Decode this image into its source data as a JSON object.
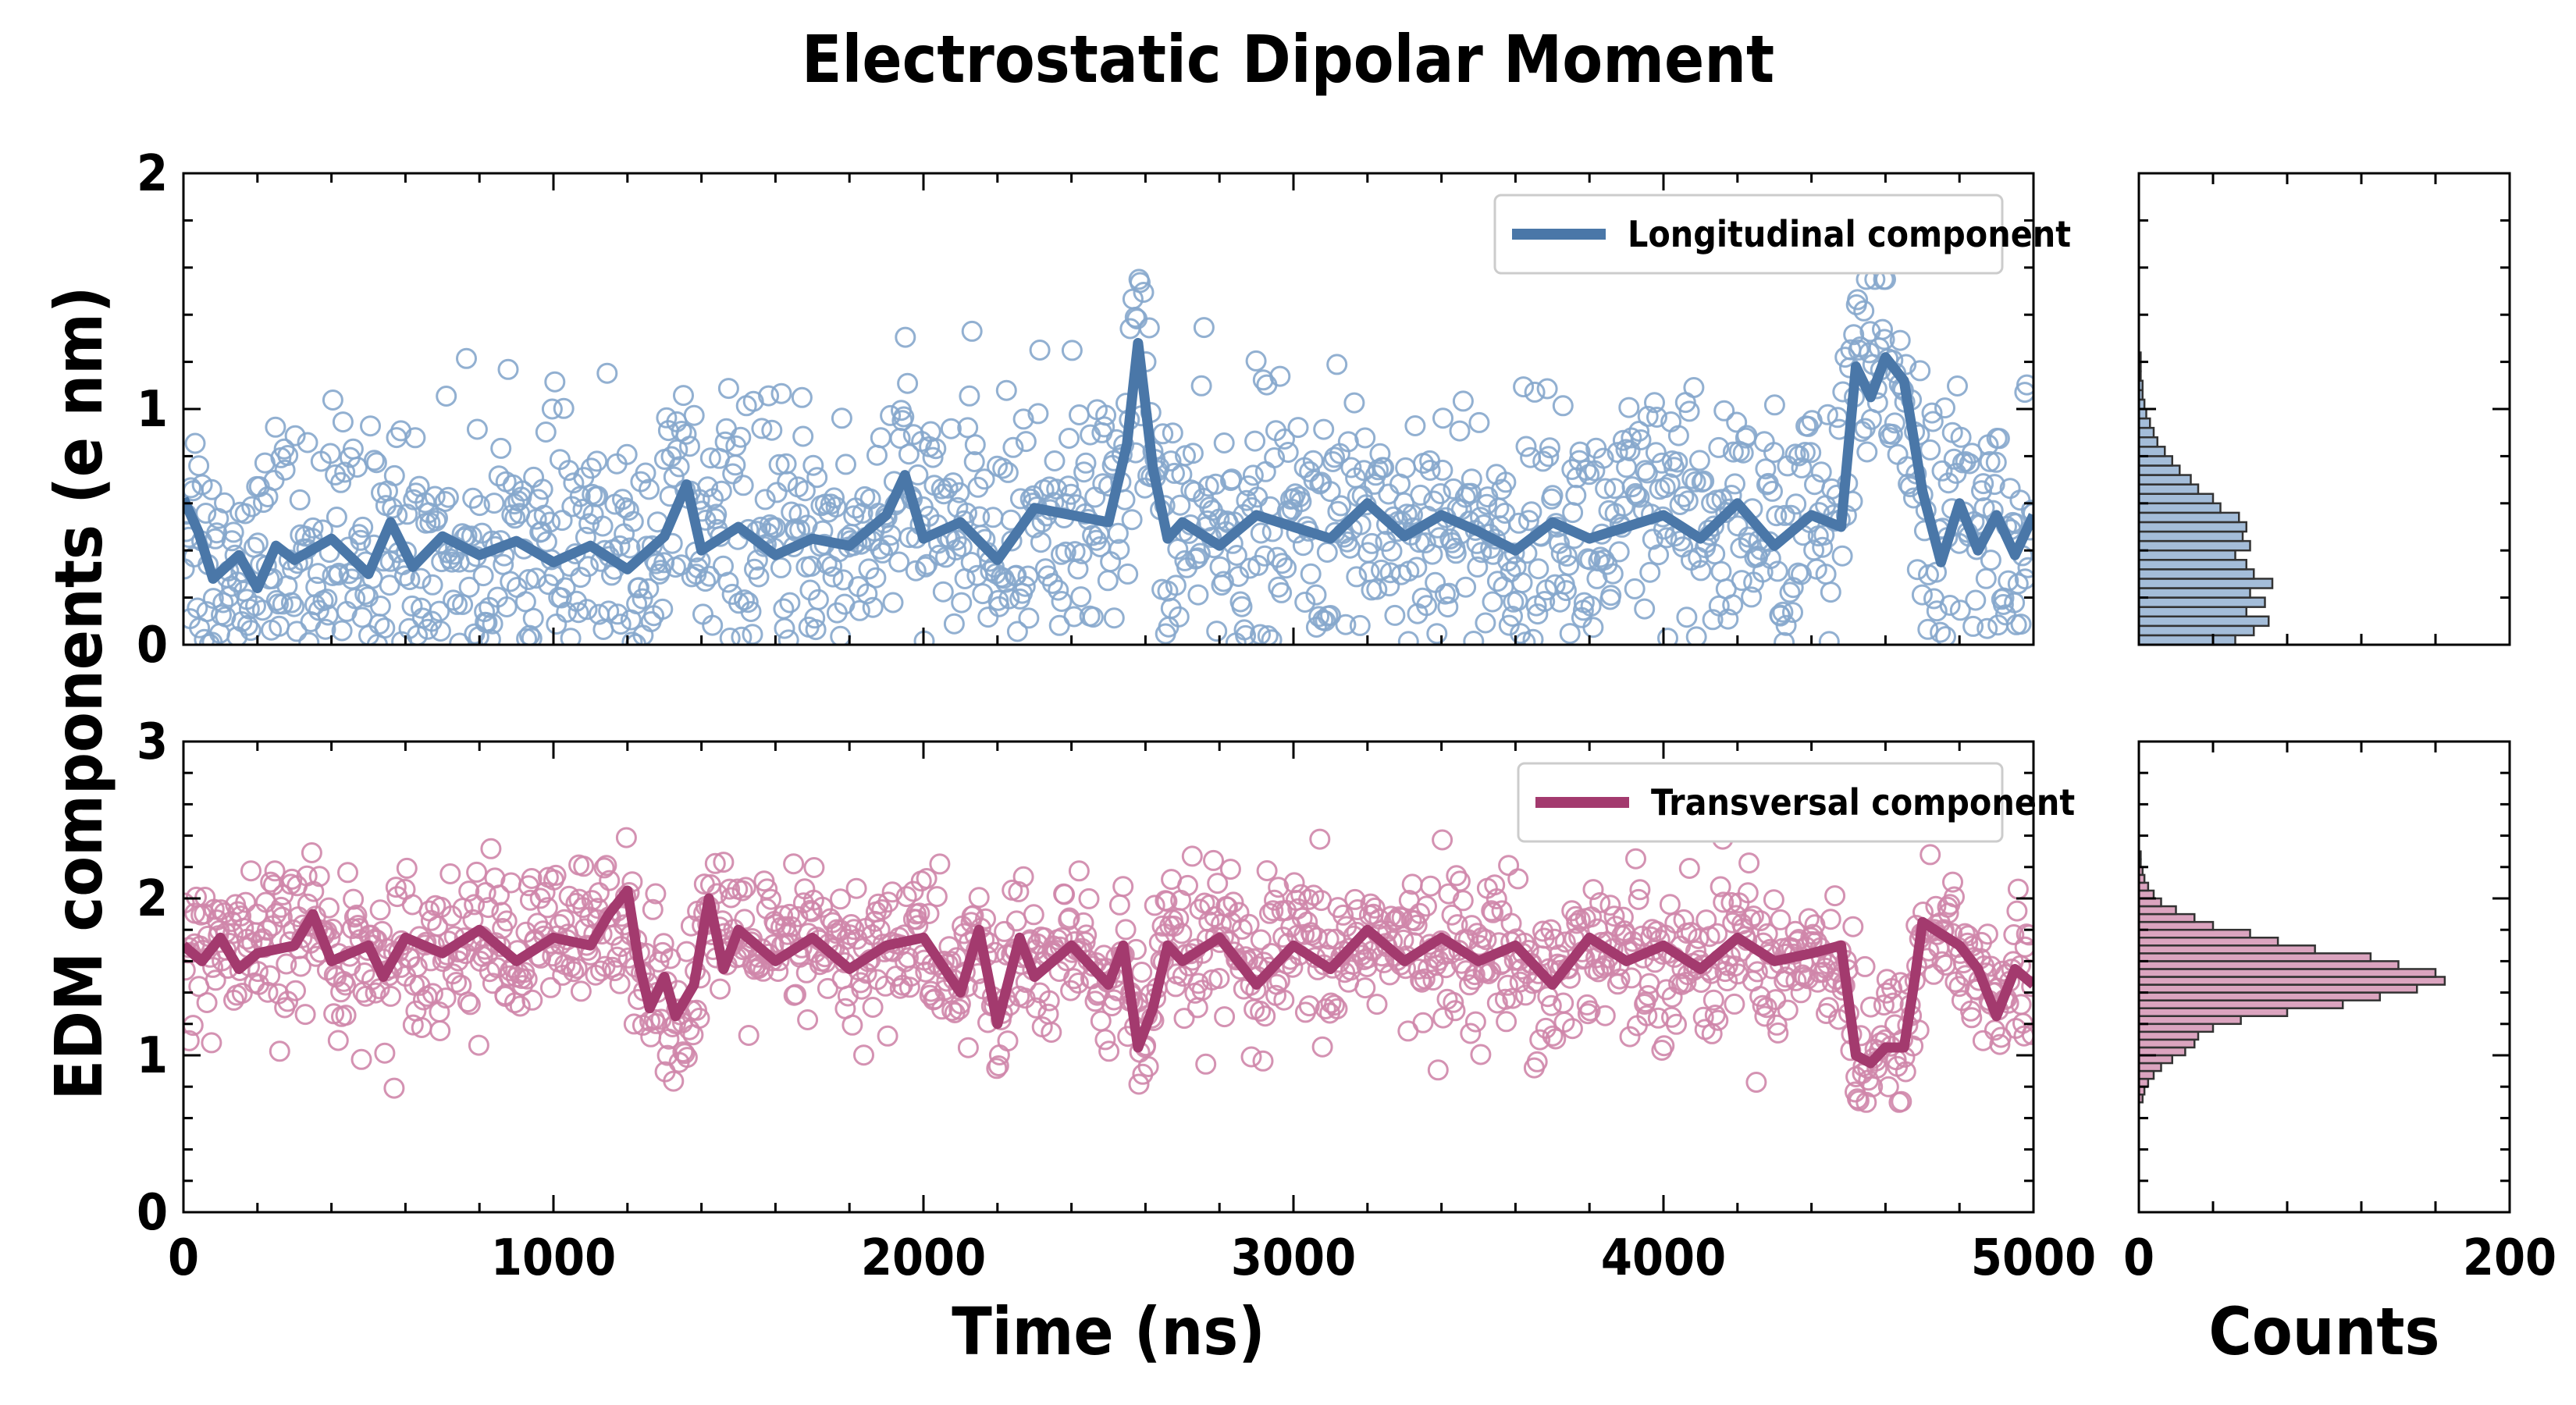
{
  "chart_data": [
    {
      "type": "scatter",
      "id": "top",
      "title": "Electrostatic Dipolar Moment",
      "xlabel": "Time (ns)",
      "ylabel": "EDM components (e nm)",
      "xlim": [
        0,
        5000
      ],
      "ylim": [
        0,
        2
      ],
      "xticks": [
        0,
        1000,
        2000,
        3000,
        4000,
        5000
      ],
      "yticks": [
        0,
        1,
        2
      ],
      "legend": "top-right",
      "series": [
        {
          "name": "Longitudinal component",
          "color": "#4a77a8",
          "scatter_color": "#86a7cc",
          "smoothed_line": [
            [
              0,
              0.62
            ],
            [
              40,
              0.48
            ],
            [
              80,
              0.28
            ],
            [
              150,
              0.38
            ],
            [
              200,
              0.24
            ],
            [
              250,
              0.42
            ],
            [
              300,
              0.36
            ],
            [
              400,
              0.45
            ],
            [
              500,
              0.3
            ],
            [
              560,
              0.52
            ],
            [
              620,
              0.33
            ],
            [
              700,
              0.46
            ],
            [
              800,
              0.38
            ],
            [
              900,
              0.44
            ],
            [
              1000,
              0.35
            ],
            [
              1100,
              0.42
            ],
            [
              1200,
              0.32
            ],
            [
              1300,
              0.46
            ],
            [
              1360,
              0.68
            ],
            [
              1400,
              0.4
            ],
            [
              1500,
              0.5
            ],
            [
              1600,
              0.38
            ],
            [
              1700,
              0.45
            ],
            [
              1800,
              0.42
            ],
            [
              1900,
              0.55
            ],
            [
              1950,
              0.72
            ],
            [
              2000,
              0.45
            ],
            [
              2100,
              0.52
            ],
            [
              2200,
              0.36
            ],
            [
              2300,
              0.58
            ],
            [
              2400,
              0.55
            ],
            [
              2500,
              0.52
            ],
            [
              2550,
              0.85
            ],
            [
              2580,
              1.28
            ],
            [
              2620,
              0.75
            ],
            [
              2660,
              0.45
            ],
            [
              2700,
              0.52
            ],
            [
              2800,
              0.42
            ],
            [
              2900,
              0.55
            ],
            [
              3000,
              0.5
            ],
            [
              3100,
              0.45
            ],
            [
              3200,
              0.6
            ],
            [
              3300,
              0.46
            ],
            [
              3400,
              0.55
            ],
            [
              3500,
              0.48
            ],
            [
              3600,
              0.4
            ],
            [
              3700,
              0.52
            ],
            [
              3800,
              0.45
            ],
            [
              3900,
              0.5
            ],
            [
              4000,
              0.55
            ],
            [
              4100,
              0.45
            ],
            [
              4200,
              0.6
            ],
            [
              4300,
              0.42
            ],
            [
              4400,
              0.55
            ],
            [
              4480,
              0.5
            ],
            [
              4520,
              1.18
            ],
            [
              4560,
              1.05
            ],
            [
              4600,
              1.22
            ],
            [
              4650,
              1.12
            ],
            [
              4700,
              0.65
            ],
            [
              4750,
              0.35
            ],
            [
              4800,
              0.6
            ],
            [
              4850,
              0.4
            ],
            [
              4900,
              0.55
            ],
            [
              4950,
              0.38
            ],
            [
              5000,
              0.55
            ]
          ],
          "scatter_summary": {
            "n_points": 1500,
            "x_range": [
              0,
              5000
            ],
            "y_range": [
              0.0,
              1.55
            ],
            "typical_center": 0.45
          },
          "histogram": {
            "orientation": "horizontal",
            "xlim": [
              0,
              200
            ],
            "xticks": [
              0,
              200
            ],
            "xlabel": "Counts",
            "bin_width": 0.04,
            "bin_edges_start": 0.0,
            "counts": [
              52,
              62,
              70,
              58,
              68,
              60,
              72,
              62,
              58,
              52,
              60,
              56,
              58,
              54,
              44,
              40,
              32,
              28,
              22,
              18,
              14,
              10,
              8,
              6,
              4,
              3,
              2,
              2,
              1,
              1,
              1,
              0,
              0
            ]
          }
        }
      ]
    },
    {
      "type": "scatter",
      "id": "bottom",
      "xlabel": "Time (ns)",
      "xlim": [
        0,
        5000
      ],
      "ylim": [
        0,
        3
      ],
      "xticks": [
        0,
        1000,
        2000,
        3000,
        4000,
        5000
      ],
      "yticks": [
        0,
        1,
        2,
        3
      ],
      "legend": "top-right",
      "series": [
        {
          "name": "Transversal component",
          "color": "#a33a6e",
          "scatter_color": "#cf86aa",
          "smoothed_line": [
            [
              0,
              1.7
            ],
            [
              50,
              1.6
            ],
            [
              100,
              1.75
            ],
            [
              150,
              1.55
            ],
            [
              200,
              1.65
            ],
            [
              300,
              1.7
            ],
            [
              350,
              1.9
            ],
            [
              400,
              1.6
            ],
            [
              500,
              1.7
            ],
            [
              540,
              1.5
            ],
            [
              600,
              1.75
            ],
            [
              700,
              1.65
            ],
            [
              800,
              1.8
            ],
            [
              900,
              1.6
            ],
            [
              1000,
              1.75
            ],
            [
              1100,
              1.7
            ],
            [
              1150,
              1.9
            ],
            [
              1200,
              2.05
            ],
            [
              1230,
              1.6
            ],
            [
              1260,
              1.3
            ],
            [
              1300,
              1.5
            ],
            [
              1330,
              1.25
            ],
            [
              1380,
              1.45
            ],
            [
              1420,
              2.0
            ],
            [
              1460,
              1.55
            ],
            [
              1500,
              1.8
            ],
            [
              1600,
              1.6
            ],
            [
              1700,
              1.75
            ],
            [
              1800,
              1.55
            ],
            [
              1900,
              1.7
            ],
            [
              2000,
              1.75
            ],
            [
              2100,
              1.4
            ],
            [
              2150,
              1.8
            ],
            [
              2200,
              1.2
            ],
            [
              2260,
              1.75
            ],
            [
              2300,
              1.5
            ],
            [
              2400,
              1.7
            ],
            [
              2500,
              1.45
            ],
            [
              2540,
              1.7
            ],
            [
              2580,
              1.05
            ],
            [
              2620,
              1.3
            ],
            [
              2660,
              1.7
            ],
            [
              2700,
              1.6
            ],
            [
              2800,
              1.75
            ],
            [
              2900,
              1.45
            ],
            [
              3000,
              1.7
            ],
            [
              3100,
              1.55
            ],
            [
              3200,
              1.8
            ],
            [
              3300,
              1.6
            ],
            [
              3400,
              1.75
            ],
            [
              3500,
              1.6
            ],
            [
              3600,
              1.7
            ],
            [
              3700,
              1.45
            ],
            [
              3800,
              1.75
            ],
            [
              3900,
              1.6
            ],
            [
              4000,
              1.7
            ],
            [
              4100,
              1.55
            ],
            [
              4200,
              1.75
            ],
            [
              4300,
              1.6
            ],
            [
              4400,
              1.65
            ],
            [
              4480,
              1.7
            ],
            [
              4520,
              1.0
            ],
            [
              4560,
              0.95
            ],
            [
              4600,
              1.05
            ],
            [
              4650,
              1.05
            ],
            [
              4680,
              1.5
            ],
            [
              4700,
              1.85
            ],
            [
              4800,
              1.7
            ],
            [
              4850,
              1.55
            ],
            [
              4900,
              1.25
            ],
            [
              4950,
              1.55
            ],
            [
              5000,
              1.45
            ]
          ],
          "scatter_summary": {
            "n_points": 1500,
            "x_range": [
              0,
              5000
            ],
            "y_range": [
              0.7,
              2.55
            ],
            "typical_center": 1.65
          },
          "histogram": {
            "orientation": "horizontal",
            "xlim": [
              0,
              200
            ],
            "xticks": [
              0,
              200
            ],
            "xlabel": "Counts",
            "bin_width": 0.05,
            "bin_edges_start": 0.7,
            "counts": [
              2,
              3,
              5,
              8,
              12,
              18,
              25,
              30,
              32,
              40,
              55,
              80,
              110,
              130,
              150,
              165,
              160,
              140,
              125,
              95,
              75,
              60,
              40,
              30,
              20,
              12,
              8,
              5,
              3,
              2,
              1,
              1,
              0,
              0,
              0,
              0
            ]
          }
        }
      ]
    }
  ]
}
